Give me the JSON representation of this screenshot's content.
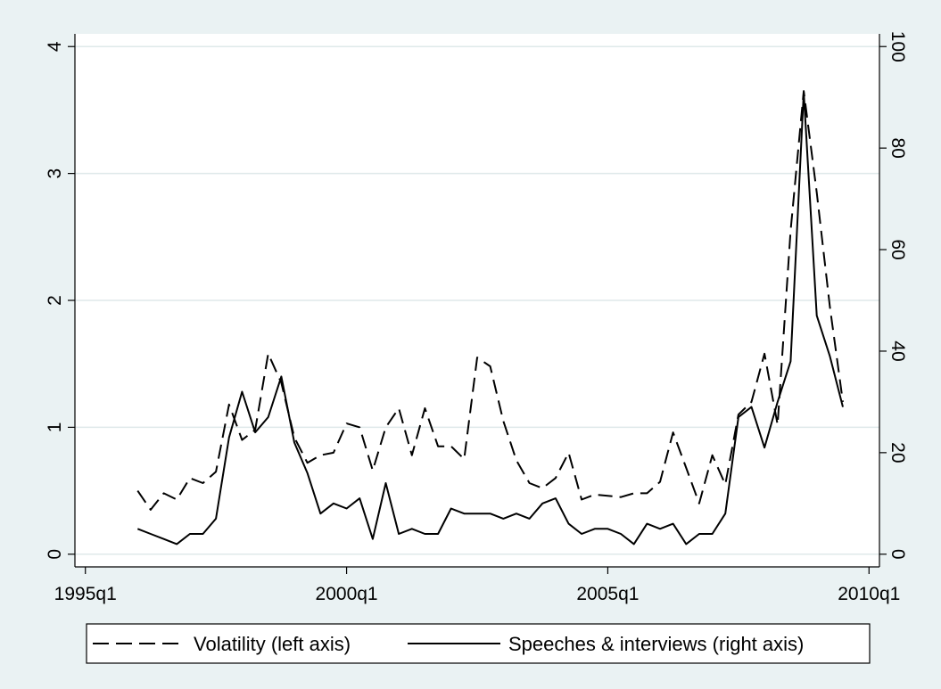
{
  "chart_data": {
    "type": "line",
    "title": "",
    "xlabel": "",
    "ylabel_left": "",
    "ylabel_right": "",
    "x_ticks": [
      "1995q1",
      "2000q1",
      "2005q1",
      "2010q1"
    ],
    "x_tick_values": [
      1995.0,
      2000.0,
      2005.0,
      2010.0
    ],
    "xlim": [
      1994.8,
      2010.2
    ],
    "y_left_ticks": [
      "0",
      "1",
      "2",
      "3",
      "4"
    ],
    "y_left_tick_values": [
      0,
      1,
      2,
      3,
      4
    ],
    "ylim_left": [
      -0.1,
      4.1
    ],
    "y_right_ticks": [
      "0",
      "20",
      "40",
      "60",
      "80",
      "100"
    ],
    "y_right_tick_values": [
      0,
      20,
      40,
      60,
      80,
      100
    ],
    "ylim_right": [
      -2.5,
      102.5
    ],
    "grid": true,
    "legend_position": "bottom",
    "series": [
      {
        "name": "Volatility (left axis)",
        "axis": "left",
        "style": "dashed",
        "color": "#000000",
        "x": [
          1996.0,
          1996.25,
          1996.5,
          1996.75,
          1997.0,
          1997.25,
          1997.5,
          1997.75,
          1998.0,
          1998.25,
          1998.5,
          1998.75,
          1999.0,
          1999.25,
          1999.5,
          1999.75,
          2000.0,
          2000.25,
          2000.5,
          2000.75,
          2001.0,
          2001.25,
          2001.5,
          2001.75,
          2002.0,
          2002.25,
          2002.5,
          2002.75,
          2003.0,
          2003.25,
          2003.5,
          2003.75,
          2004.0,
          2004.25,
          2004.5,
          2004.75,
          2005.0,
          2005.25,
          2005.5,
          2005.75,
          2006.0,
          2006.25,
          2006.5,
          2006.75,
          2007.0,
          2007.25,
          2007.5,
          2007.75,
          2008.0,
          2008.25,
          2008.5,
          2008.75,
          2009.0,
          2009.25,
          2009.5
        ],
        "y": [
          0.5,
          0.35,
          0.48,
          0.43,
          0.6,
          0.56,
          0.65,
          1.18,
          0.9,
          0.98,
          1.58,
          1.35,
          0.92,
          0.72,
          0.78,
          0.8,
          1.03,
          1.0,
          0.66,
          1.0,
          1.15,
          0.78,
          1.15,
          0.85,
          0.85,
          0.75,
          1.55,
          1.48,
          1.05,
          0.74,
          0.56,
          0.52,
          0.6,
          0.8,
          0.43,
          0.47,
          0.46,
          0.45,
          0.48,
          0.48,
          0.57,
          0.96,
          0.68,
          0.4,
          0.78,
          0.55,
          1.1,
          1.2,
          1.58,
          1.02,
          2.55,
          3.65,
          2.85,
          1.95,
          1.2
        ]
      },
      {
        "name": "Speeches & interviews (right axis)",
        "axis": "right",
        "style": "solid",
        "color": "#000000",
        "x": [
          1996.0,
          1996.25,
          1996.5,
          1996.75,
          1997.0,
          1997.25,
          1997.5,
          1997.75,
          1998.0,
          1998.25,
          1998.5,
          1998.75,
          1999.0,
          1999.25,
          1999.5,
          1999.75,
          2000.0,
          2000.25,
          2000.5,
          2000.75,
          2001.0,
          2001.25,
          2001.5,
          2001.75,
          2002.0,
          2002.25,
          2002.5,
          2002.75,
          2003.0,
          2003.25,
          2003.5,
          2003.75,
          2004.0,
          2004.25,
          2004.5,
          2004.75,
          2005.0,
          2005.25,
          2005.5,
          2005.75,
          2006.0,
          2006.25,
          2006.5,
          2006.75,
          2007.0,
          2007.25,
          2007.5,
          2007.75,
          2008.0,
          2008.25,
          2008.5,
          2008.75,
          2009.0,
          2009.25,
          2009.5
        ],
        "y": [
          5,
          4,
          3,
          2,
          4,
          4,
          7,
          23,
          32,
          24,
          27,
          35,
          22,
          16,
          8,
          10,
          9,
          11,
          3,
          14,
          4,
          5,
          4,
          4,
          9,
          8,
          8,
          8,
          7,
          8,
          7,
          10,
          11,
          6,
          4,
          5,
          5,
          4,
          2,
          6,
          5,
          6,
          2,
          4,
          4,
          8,
          27,
          29,
          21,
          30,
          38,
          91,
          47,
          39,
          29
        ]
      }
    ]
  }
}
